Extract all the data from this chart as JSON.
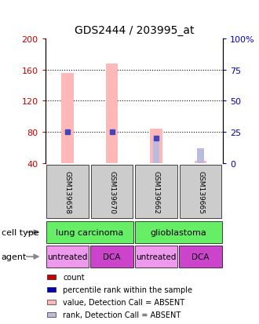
{
  "title": "GDS2444 / 203995_at",
  "samples": [
    "GSM139658",
    "GSM139670",
    "GSM139662",
    "GSM139665"
  ],
  "value_bars": [
    156,
    168,
    84,
    43
  ],
  "rank_dots": [
    25,
    25,
    null,
    null
  ],
  "rank_absent_bars": [
    null,
    null,
    20,
    12
  ],
  "rank_dots_present": [
    0,
    1
  ],
  "rank_dots_absent": [
    2
  ],
  "cell_types": [
    {
      "label": "lung carcinoma",
      "span": [
        0,
        2
      ],
      "color": "#66ee66"
    },
    {
      "label": "glioblastoma",
      "span": [
        2,
        4
      ],
      "color": "#66ee66"
    }
  ],
  "agents": [
    {
      "label": "untreated",
      "span": [
        0,
        1
      ],
      "color": "#ee99ee"
    },
    {
      "label": "DCA",
      "span": [
        1,
        2
      ],
      "color": "#cc44cc"
    },
    {
      "label": "untreated",
      "span": [
        2,
        3
      ],
      "color": "#ee99ee"
    },
    {
      "label": "DCA",
      "span": [
        3,
        4
      ],
      "color": "#cc44cc"
    }
  ],
  "ylim_left": [
    40,
    200
  ],
  "ylim_right": [
    0,
    100
  ],
  "left_ticks": [
    40,
    80,
    120,
    160,
    200
  ],
  "right_ticks": [
    0,
    25,
    50,
    75,
    100
  ],
  "value_color": "#ffb8b8",
  "rank_dot_color": "#4444bb",
  "rank_absent_color": "#bbbbdd",
  "legend_items": [
    {
      "color": "#cc0000",
      "label": "count"
    },
    {
      "color": "#0000bb",
      "label": "percentile rank within the sample"
    },
    {
      "color": "#ffb8b8",
      "label": "value, Detection Call = ABSENT"
    },
    {
      "color": "#bbbbdd",
      "label": "rank, Detection Call = ABSENT"
    }
  ],
  "sample_box_color": "#cccccc",
  "left_tick_color": "#cc0000",
  "right_tick_color": "#0000bb",
  "title_fontsize": 10,
  "grid_ticks": [
    80,
    120,
    160
  ]
}
